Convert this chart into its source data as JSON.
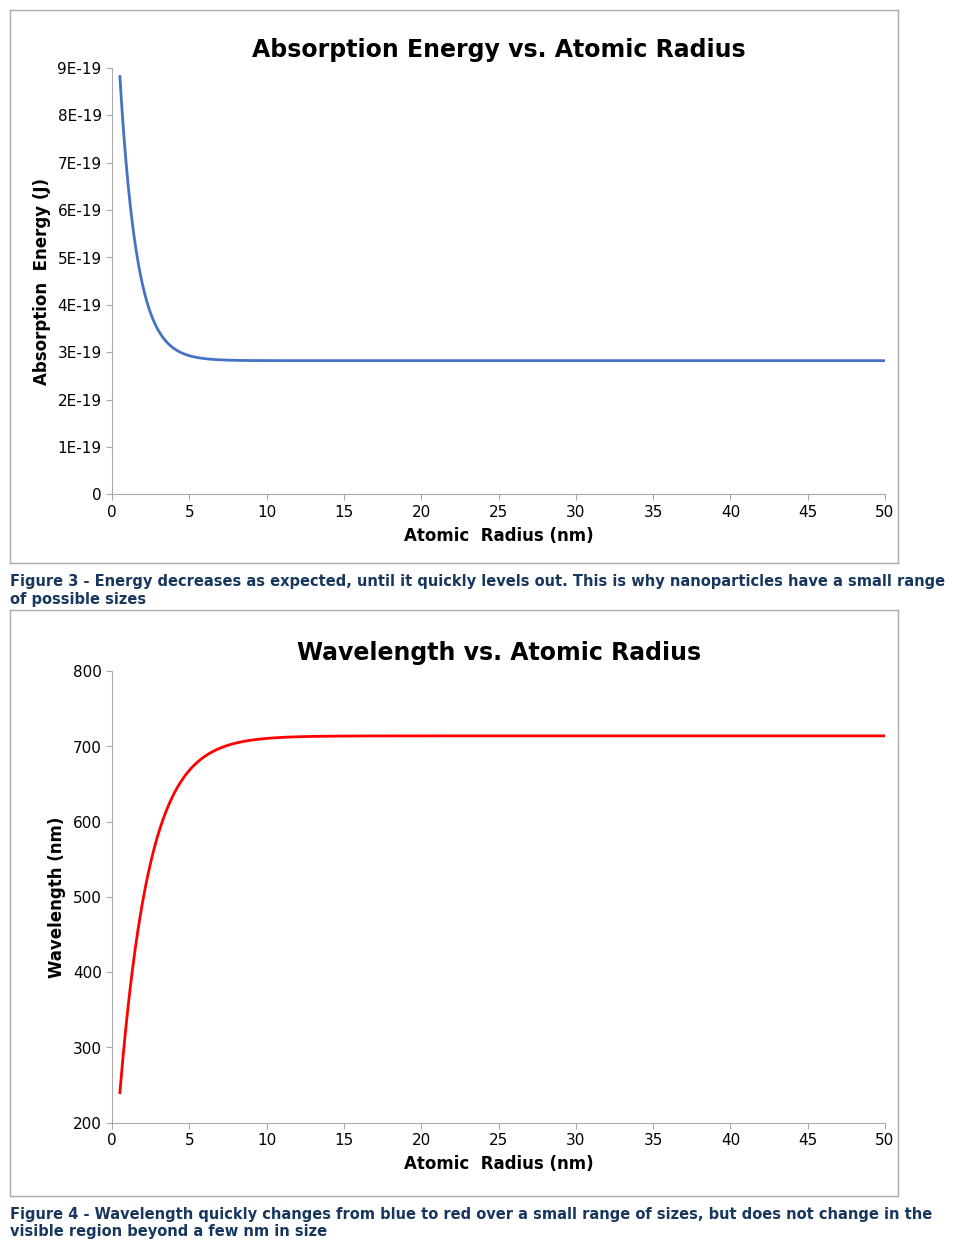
{
  "fig1_title": "Absorption Energy vs. Atomic Radius",
  "fig1_xlabel": "Atomic  Radius (nm)",
  "fig1_ylabel": "Absorption  Energy (J)",
  "fig1_color": "#4472C4",
  "fig1_xlim": [
    0,
    50
  ],
  "fig1_ylim": [
    0,
    9e-19
  ],
  "fig1_xticks": [
    0,
    5,
    10,
    15,
    20,
    25,
    30,
    35,
    40,
    45,
    50
  ],
  "fig1_yticks": [
    0,
    1e-19,
    2e-19,
    3e-19,
    4e-19,
    5e-19,
    6e-19,
    7e-19,
    8e-19,
    9e-19
  ],
  "fig1_ytick_labels": [
    "0",
    "1E-19",
    "2E-19",
    "3E-19",
    "4E-19",
    "5E-19",
    "6E-19",
    "7E-19",
    "8E-19",
    "9E-19"
  ],
  "fig1_caption": "Figure 3 - Energy decreases as expected, until it quickly levels out. This is why nanoparticles have a small range\nof possible sizes",
  "fig2_title": "Wavelength vs. Atomic Radius",
  "fig2_xlabel": "Atomic  Radius (nm)",
  "fig2_ylabel": "Wavelength (nm)",
  "fig2_color": "#FF0000",
  "fig2_xlim": [
    0,
    50
  ],
  "fig2_ylim": [
    200,
    800
  ],
  "fig2_xticks": [
    0,
    5,
    10,
    15,
    20,
    25,
    30,
    35,
    40,
    45,
    50
  ],
  "fig2_yticks": [
    200,
    300,
    400,
    500,
    600,
    700,
    800
  ],
  "fig2_caption": "Figure 4 - Wavelength quickly changes from blue to red over a small range of sizes, but does not change in the\nvisible region beyond a few nm in size",
  "background_color": "#FFFFFF",
  "box_edge_color": "#7F7F7F",
  "caption_color": "#17375E",
  "title_fontsize": 17,
  "axis_label_fontsize": 12,
  "tick_fontsize": 11,
  "caption_fontsize": 10.5,
  "line_width": 2.0,
  "fig1_E0": 2.82e-19,
  "fig1_A": 6e-19,
  "fig1_k": 0.9,
  "fig2_lambda_max": 714.0,
  "fig2_lambda_min": 240.0,
  "fig2_k": 0.52
}
